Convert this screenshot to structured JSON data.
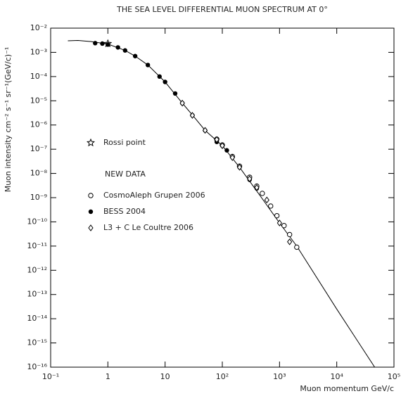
{
  "chart_data": {
    "type": "scatter",
    "title": "THE SEA LEVEL DIFFERENTIAL MUON SPECTRUM AT 0°",
    "x_label": "Muon momentum GeV/c",
    "y_label": "Muon intensity cm⁻² s⁻¹ sr⁻¹(GeV/c)⁻¹",
    "log_x": true,
    "log_y": true,
    "xlim": [
      0.1,
      100000
    ],
    "ylim": [
      1e-16,
      0.01
    ],
    "xticks": [
      {
        "value": 0.1,
        "label": "10⁻¹"
      },
      1,
      10,
      {
        "value": 100,
        "label": "10²"
      },
      {
        "value": 1000,
        "label": "10³"
      },
      {
        "value": 10000,
        "label": "10⁴"
      },
      {
        "value": 100000,
        "label": "10⁵"
      }
    ],
    "yticks": [
      {
        "value": 1e-16,
        "label": "10⁻¹⁶"
      },
      {
        "value": 1e-15,
        "label": "10⁻¹⁵"
      },
      {
        "value": 1e-14,
        "label": "10⁻¹⁴"
      },
      {
        "value": 1e-13,
        "label": "10⁻¹³"
      },
      {
        "value": 1e-12,
        "label": "10⁻¹²"
      },
      {
        "value": 1e-11,
        "label": "10⁻¹¹"
      },
      {
        "value": 1e-10,
        "label": "10⁻¹⁰"
      },
      {
        "value": 1e-09,
        "label": "10⁻⁹"
      },
      {
        "value": 1e-08,
        "label": "10⁻⁸"
      },
      {
        "value": 1e-07,
        "label": "10⁻⁷"
      },
      {
        "value": 1e-06,
        "label": "10⁻⁶"
      },
      {
        "value": 1e-05,
        "label": "10⁻⁵"
      },
      {
        "value": 0.0001,
        "label": "10⁻⁴"
      },
      {
        "value": 0.001,
        "label": "10⁻³"
      },
      {
        "value": 0.01,
        "label": "10⁻²"
      }
    ],
    "legend_heading": "NEW DATA",
    "series": [
      {
        "marker": "line",
        "color": "#000000",
        "x": [
          0.2,
          0.3,
          0.5,
          1,
          2,
          3,
          5,
          10,
          20,
          30,
          50,
          100,
          200,
          500,
          1000,
          2000,
          10000,
          46000
        ],
        "values": [
          0.003,
          0.0031,
          0.0028,
          0.0022,
          0.0012,
          0.0007,
          0.0003,
          6e-05,
          8e-06,
          2.6e-06,
          6e-07,
          1.4e-07,
          1.8e-08,
          9e-10,
          9e-11,
          1e-11,
          2.5e-14,
          1e-16
        ]
      },
      {
        "name": "Rossi point",
        "marker": "star",
        "color": "#000000",
        "x": [
          1
        ],
        "values": [
          0.0023
        ]
      },
      {
        "name": "CosmoAleph Grupen 2006",
        "marker": "open-circle",
        "color": "#000000",
        "x": [
          80,
          100,
          150,
          200,
          300,
          400,
          500,
          700,
          900,
          1200,
          1500,
          2000
        ],
        "values": [
          2.6e-07,
          1.5e-07,
          5e-08,
          2e-08,
          7e-09,
          3e-09,
          1.5e-09,
          4.5e-10,
          1.8e-10,
          7e-11,
          3e-11,
          9e-12
        ]
      },
      {
        "name": "BESS 2004",
        "marker": "filled-circle",
        "color": "#000000",
        "x": [
          0.6,
          0.8,
          1,
          1.5,
          2,
          3,
          5,
          8,
          10,
          15,
          20,
          30,
          50,
          80,
          100,
          120,
          200,
          300,
          400
        ],
        "values": [
          0.0024,
          0.0023,
          0.0021,
          0.0016,
          0.0012,
          0.0007,
          0.0003,
          0.0001,
          6e-05,
          2e-05,
          8e-06,
          2.5e-06,
          6e-07,
          2e-07,
          1.4e-07,
          9e-08,
          1.8e-08,
          5.5e-09,
          2.4e-09
        ]
      },
      {
        "name": "L3 + C Le Coultre 2006",
        "marker": "diamond",
        "color": "#000000",
        "x": [
          20,
          30,
          50,
          80,
          100,
          150,
          200,
          300,
          400,
          600,
          1000,
          1500
        ],
        "values": [
          8e-06,
          2.5e-06,
          6e-07,
          2.5e-07,
          1.4e-07,
          4.5e-08,
          1.8e-08,
          6e-09,
          2.6e-09,
          8e-10,
          9e-11,
          1.5e-11
        ]
      }
    ]
  }
}
